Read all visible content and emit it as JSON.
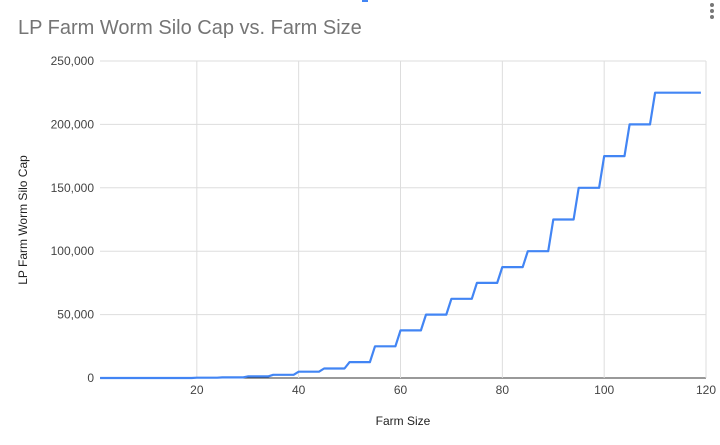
{
  "chart_data": {
    "type": "line",
    "title": "LP Farm Worm Silo Cap vs. Farm Size",
    "xlabel": "Farm Size",
    "ylabel": "LP Farm Worm Silo Cap",
    "xlim": [
      0,
      120
    ],
    "ylim": [
      0,
      250000
    ],
    "xticks": [
      20,
      40,
      60,
      80,
      100,
      120
    ],
    "xtick_labels": [
      "20",
      "40",
      "60",
      "80",
      "100",
      "120"
    ],
    "yticks": [
      0,
      50000,
      100000,
      150000,
      200000,
      250000
    ],
    "ytick_labels": [
      "0",
      "50,000",
      "100,000",
      "150,000",
      "200,000",
      "250,000"
    ],
    "grid": true,
    "series": [
      {
        "name": "LP Farm Worm Silo Cap",
        "color": "#4285f4",
        "points": [
          [
            1,
            0
          ],
          [
            19,
            0
          ],
          [
            20,
            250
          ],
          [
            24,
            250
          ],
          [
            25,
            500
          ],
          [
            29,
            500
          ],
          [
            30,
            1250
          ],
          [
            34,
            1250
          ],
          [
            35,
            2500
          ],
          [
            39,
            2500
          ],
          [
            40,
            5000
          ],
          [
            44,
            5000
          ],
          [
            45,
            7500
          ],
          [
            49,
            7500
          ],
          [
            50,
            12500
          ],
          [
            54,
            12500
          ],
          [
            55,
            25000
          ],
          [
            59,
            25000
          ],
          [
            60,
            37500
          ],
          [
            64,
            37500
          ],
          [
            65,
            50000
          ],
          [
            69,
            50000
          ],
          [
            70,
            62500
          ],
          [
            74,
            62500
          ],
          [
            75,
            75000
          ],
          [
            79,
            75000
          ],
          [
            80,
            87500
          ],
          [
            84,
            87500
          ],
          [
            85,
            100000
          ],
          [
            89,
            100000
          ],
          [
            90,
            125000
          ],
          [
            94,
            125000
          ],
          [
            95,
            150000
          ],
          [
            99,
            150000
          ],
          [
            100,
            175000
          ],
          [
            104,
            175000
          ],
          [
            105,
            200000
          ],
          [
            109,
            200000
          ],
          [
            110,
            225000
          ],
          [
            119,
            225000
          ]
        ]
      }
    ]
  }
}
